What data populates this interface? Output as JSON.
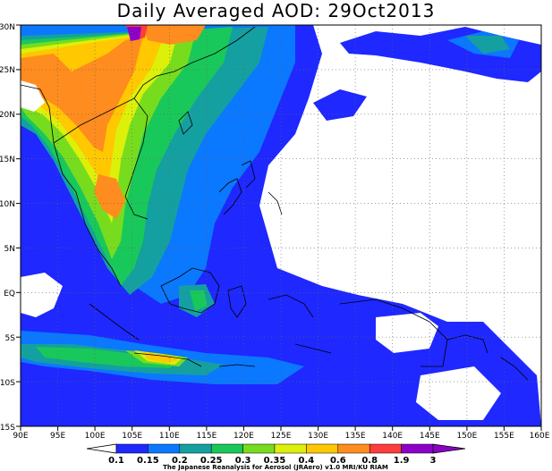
{
  "title": "Daily Averaged AOD: 29Oct2013",
  "map": {
    "lon_labels": [
      "90E",
      "95E",
      "100E",
      "105E",
      "110E",
      "115E",
      "120E",
      "125E",
      "130E",
      "135E",
      "140E",
      "145E",
      "150E",
      "155E",
      "160E"
    ],
    "lat_labels": [
      "30N",
      "25N",
      "20N",
      "15N",
      "10N",
      "5N",
      "EQ",
      "5S",
      "10S",
      "15S"
    ],
    "lon_range": [
      90,
      160
    ],
    "lat_range": [
      -15,
      30
    ],
    "gridlines": true
  },
  "colorbar": {
    "levels": [
      "0.1",
      "0.15",
      "0.2",
      "0.25",
      "0.3",
      "0.35",
      "0.4",
      "0.6",
      "0.8",
      "1.9",
      "3"
    ],
    "colors": [
      "#1e28ff",
      "#0a78ff",
      "#14a0a0",
      "#19c85a",
      "#78dc1e",
      "#dcf00a",
      "#ffc800",
      "#ff8c1e",
      "#ff3c3c",
      "#8c00c8"
    ]
  },
  "credit": "The Japanese Reanalysis for Aerosol (JRAero) v1.0 MRI/KU RIAM"
}
